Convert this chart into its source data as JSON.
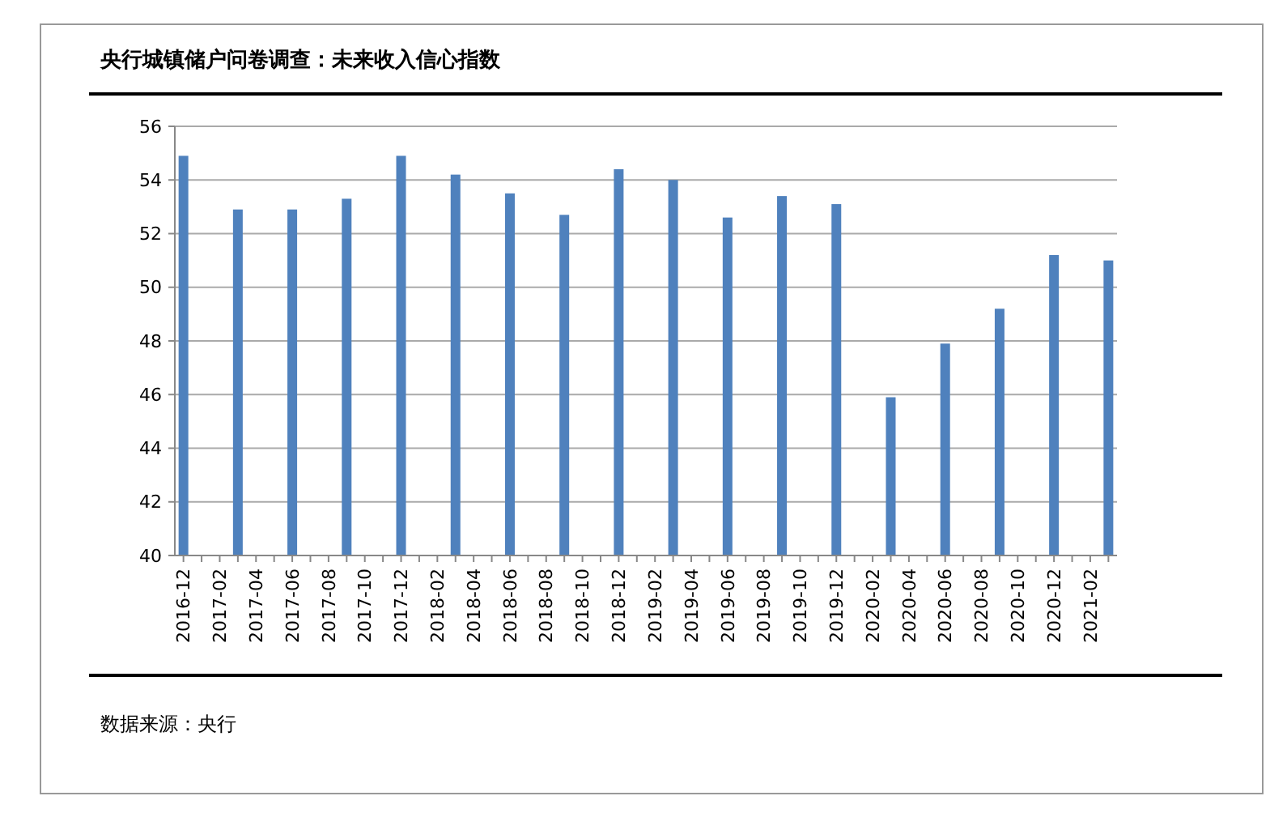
{
  "chart_data": {
    "type": "bar",
    "title": "央行城镇储户问卷调查：未来收入信心指数",
    "categories": [
      "2016-12",
      null,
      "2017-02",
      null,
      "2017-04",
      null,
      "2017-06",
      null,
      "2017-08",
      null,
      "2017-10",
      null,
      "2017-12",
      null,
      "2018-02",
      null,
      "2018-04",
      null,
      "2018-06",
      null,
      "2018-08",
      null,
      "2018-10",
      null,
      "2018-12",
      null,
      "2019-02",
      null,
      "2019-04",
      null,
      "2019-06",
      null,
      "2019-08",
      null,
      "2019-10",
      null,
      "2019-12",
      null,
      "2020-02",
      null,
      "2020-04",
      null,
      "2020-06",
      null,
      "2020-08",
      null,
      "2020-10",
      null,
      "2020-12",
      null,
      "2021-02",
      null
    ],
    "values": [
      54.9,
      null,
      null,
      52.9,
      null,
      null,
      52.9,
      null,
      null,
      53.3,
      null,
      null,
      54.9,
      null,
      null,
      54.2,
      null,
      null,
      53.5,
      null,
      null,
      52.7,
      null,
      null,
      54.4,
      null,
      null,
      54.0,
      null,
      null,
      52.6,
      null,
      null,
      53.4,
      null,
      null,
      53.1,
      null,
      null,
      45.9,
      null,
      null,
      47.9,
      null,
      null,
      49.2,
      null,
      null,
      51.2,
      null,
      null,
      51.0
    ],
    "color": "#4f81bd",
    "ylim": [
      40,
      56
    ],
    "yticks": [
      40,
      42,
      44,
      46,
      48,
      50,
      52,
      54,
      56
    ],
    "grid": "y",
    "annotations": [
      "数据来源：央行"
    ]
  }
}
